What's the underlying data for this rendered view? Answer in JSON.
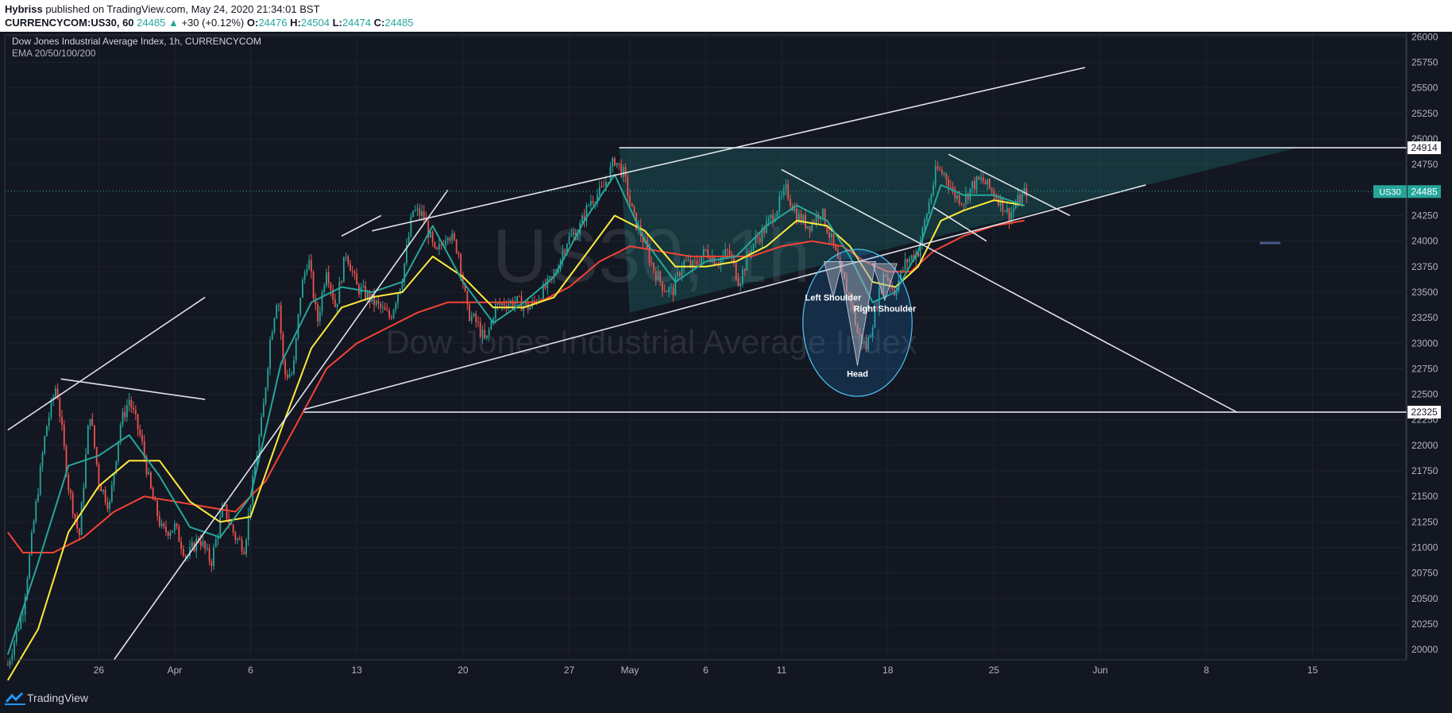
{
  "header": {
    "author": "Hybriss",
    "published_text": " published on TradingView.com, May 24, 2020 21:34:01 BST",
    "symbol": "CURRENCYCOM:US30, 60",
    "last": "24485",
    "change": "+30 (+0.12%)",
    "o_label": "O:",
    "o_value": "24476",
    "h_label": "H:",
    "h_value": "24504",
    "l_label": "L:",
    "l_value": "24474",
    "c_label": "C:",
    "c_value": "24485"
  },
  "legend": {
    "title": "Dow Jones Industrial Average Index, 1h, CURRENCYCOM",
    "indicator": "EMA 20/50/100/200"
  },
  "watermark": {
    "symbol": "US30, 1h",
    "name": "Dow Jones Industrial Average Index"
  },
  "annotations": {
    "left_shoulder": "Left Shoulder",
    "right_shoulder": "Right Shoulder",
    "head": "Head"
  },
  "price_labels": {
    "resistance": "24914",
    "support": "22325",
    "current_symbol": "US30",
    "current_price": "24485"
  },
  "footer": {
    "brand": "TradingView"
  },
  "colors": {
    "background": "#131722",
    "up": "#26a69a",
    "down": "#ef5350",
    "ema20": "#26a69a",
    "ema50": "#ffeb3b",
    "ema100": "#f44336",
    "lines": "#e0e3eb"
  },
  "chart_data": {
    "type": "candlestick",
    "y_ticks": [
      20000,
      20250,
      20500,
      20750,
      21000,
      21250,
      21500,
      21750,
      22000,
      22250,
      22500,
      22750,
      23000,
      23250,
      23500,
      23750,
      24000,
      24250,
      24500,
      24750,
      25000,
      25250,
      25500,
      25750,
      26000
    ],
    "ylim": [
      19900,
      26050
    ],
    "x_ticks": [
      "26",
      "Apr",
      "6",
      "13",
      "20",
      "27",
      "May",
      "6",
      "11",
      "18",
      "25",
      "Jun",
      "8",
      "15"
    ],
    "x_tick_days": [
      -5,
      0,
      5,
      12,
      19,
      26,
      30,
      35,
      40,
      47,
      54,
      61,
      68,
      75
    ],
    "xlim": [
      -11.2,
      81.2
    ],
    "close_path": [
      [
        -11,
        19850
      ],
      [
        -10,
        20400
      ],
      [
        -9.2,
        21350
      ],
      [
        -8.5,
        22150
      ],
      [
        -7.8,
        22600
      ],
      [
        -7,
        21600
      ],
      [
        -6.3,
        21100
      ],
      [
        -5.6,
        22350
      ],
      [
        -5,
        21650
      ],
      [
        -4.3,
        21400
      ],
      [
        -3.6,
        22200
      ],
      [
        -3,
        22450
      ],
      [
        -2.2,
        22050
      ],
      [
        -1.5,
        21500
      ],
      [
        -0.8,
        21150
      ],
      [
        0,
        21200
      ],
      [
        0.8,
        20900
      ],
      [
        1.6,
        21100
      ],
      [
        2.4,
        20850
      ],
      [
        3.2,
        21400
      ],
      [
        4,
        21100
      ],
      [
        4.6,
        21000
      ],
      [
        5.2,
        21700
      ],
      [
        5.8,
        22300
      ],
      [
        6.3,
        23050
      ],
      [
        6.8,
        23500
      ],
      [
        7.2,
        22700
      ],
      [
        7.8,
        22700
      ],
      [
        8.3,
        23500
      ],
      [
        8.8,
        23850
      ],
      [
        9.4,
        23200
      ],
      [
        10,
        23750
      ],
      [
        10.6,
        23350
      ],
      [
        11.3,
        23900
      ],
      [
        12,
        23550
      ],
      [
        12.8,
        23450
      ],
      [
        13.5,
        23350
      ],
      [
        14.2,
        23250
      ],
      [
        15,
        23650
      ],
      [
        15.7,
        24300
      ],
      [
        16.4,
        24250
      ],
      [
        17.2,
        23850
      ],
      [
        18,
        24100
      ],
      [
        18.7,
        23900
      ],
      [
        19.3,
        23300
      ],
      [
        19.9,
        23200
      ],
      [
        20.5,
        23000
      ],
      [
        21.1,
        23350
      ],
      [
        21.8,
        23400
      ],
      [
        22.6,
        23400
      ],
      [
        23.4,
        23350
      ],
      [
        24.2,
        23500
      ],
      [
        25,
        23650
      ],
      [
        25.8,
        24000
      ],
      [
        26.6,
        24100
      ],
      [
        27.4,
        24400
      ],
      [
        28.2,
        24500
      ],
      [
        29,
        24800
      ],
      [
        29.6,
        24650
      ],
      [
        30.2,
        24250
      ],
      [
        30.9,
        24000
      ],
      [
        31.5,
        23750
      ],
      [
        32.2,
        23550
      ],
      [
        32.8,
        23500
      ],
      [
        33.5,
        23800
      ],
      [
        34.2,
        23750
      ],
      [
        35,
        23900
      ],
      [
        35.8,
        23800
      ],
      [
        36.5,
        23900
      ],
      [
        37.2,
        23600
      ],
      [
        38,
        23950
      ],
      [
        38.8,
        24100
      ],
      [
        39.6,
        24300
      ],
      [
        40.3,
        24500
      ],
      [
        41,
        24250
      ],
      [
        41.8,
        24150
      ],
      [
        42.6,
        24300
      ],
      [
        43.3,
        24000
      ],
      [
        44,
        23650
      ],
      [
        44.6,
        23400
      ],
      [
        45,
        23100
      ],
      [
        45.6,
        22950
      ],
      [
        46.2,
        23350
      ],
      [
        46.8,
        23700
      ],
      [
        47.4,
        23500
      ],
      [
        48.2,
        23800
      ],
      [
        49,
        23900
      ],
      [
        49.6,
        24300
      ],
      [
        50.2,
        24700
      ],
      [
        50.8,
        24650
      ],
      [
        51.4,
        24450
      ],
      [
        52,
        24400
      ],
      [
        52.6,
        24550
      ],
      [
        53.2,
        24600
      ],
      [
        53.8,
        24500
      ],
      [
        54.4,
        24400
      ],
      [
        55,
        24250
      ],
      [
        55.6,
        24400
      ],
      [
        56.2,
        24500
      ]
    ],
    "ema20_path": [
      [
        -11,
        19950
      ],
      [
        -9,
        20850
      ],
      [
        -7,
        21800
      ],
      [
        -5,
        21900
      ],
      [
        -3,
        22100
      ],
      [
        -1,
        21700
      ],
      [
        1,
        21200
      ],
      [
        3,
        21100
      ],
      [
        5,
        21500
      ],
      [
        7,
        22800
      ],
      [
        9,
        23400
      ],
      [
        11,
        23550
      ],
      [
        13,
        23500
      ],
      [
        15,
        23600
      ],
      [
        17,
        24150
      ],
      [
        19,
        23600
      ],
      [
        21,
        23200
      ],
      [
        23,
        23400
      ],
      [
        25,
        23650
      ],
      [
        27,
        24200
      ],
      [
        29,
        24650
      ],
      [
        31,
        24000
      ],
      [
        33,
        23600
      ],
      [
        35,
        23800
      ],
      [
        37,
        23850
      ],
      [
        39,
        24150
      ],
      [
        41,
        24350
      ],
      [
        43,
        24200
      ],
      [
        44.5,
        23850
      ],
      [
        46,
        23400
      ],
      [
        47.5,
        23500
      ],
      [
        49,
        23900
      ],
      [
        50.5,
        24550
      ],
      [
        52,
        24450
      ],
      [
        54,
        24450
      ],
      [
        56,
        24350
      ]
    ],
    "ema50_path": [
      [
        -11,
        19700
      ],
      [
        -9,
        20200
      ],
      [
        -7,
        21150
      ],
      [
        -5,
        21600
      ],
      [
        -3,
        21850
      ],
      [
        -1,
        21850
      ],
      [
        1,
        21450
      ],
      [
        3,
        21250
      ],
      [
        5,
        21300
      ],
      [
        7,
        22150
      ],
      [
        9,
        22950
      ],
      [
        11,
        23350
      ],
      [
        13,
        23450
      ],
      [
        15,
        23500
      ],
      [
        17,
        23850
      ],
      [
        19,
        23650
      ],
      [
        21,
        23350
      ],
      [
        23,
        23350
      ],
      [
        25,
        23450
      ],
      [
        27,
        23850
      ],
      [
        29,
        24250
      ],
      [
        31,
        24100
      ],
      [
        33,
        23750
      ],
      [
        35,
        23750
      ],
      [
        37,
        23800
      ],
      [
        39,
        23950
      ],
      [
        41,
        24200
      ],
      [
        43,
        24150
      ],
      [
        44.5,
        23950
      ],
      [
        46,
        23600
      ],
      [
        47.5,
        23550
      ],
      [
        49,
        23750
      ],
      [
        50.5,
        24200
      ],
      [
        52,
        24300
      ],
      [
        54,
        24400
      ],
      [
        56,
        24350
      ]
    ],
    "ema100_path": [
      [
        -11,
        21150
      ],
      [
        -10,
        20950
      ],
      [
        -8,
        20950
      ],
      [
        -6,
        21100
      ],
      [
        -4,
        21350
      ],
      [
        -2,
        21500
      ],
      [
        0,
        21450
      ],
      [
        2,
        21400
      ],
      [
        4,
        21350
      ],
      [
        6,
        21650
      ],
      [
        8,
        22200
      ],
      [
        10,
        22750
      ],
      [
        12,
        23000
      ],
      [
        14,
        23150
      ],
      [
        16,
        23300
      ],
      [
        18,
        23400
      ],
      [
        20,
        23400
      ],
      [
        22,
        23400
      ],
      [
        24,
        23400
      ],
      [
        26,
        23550
      ],
      [
        28,
        23800
      ],
      [
        30,
        23950
      ],
      [
        32,
        23900
      ],
      [
        34,
        23850
      ],
      [
        36,
        23850
      ],
      [
        38,
        23850
      ],
      [
        40,
        23950
      ],
      [
        42,
        24000
      ],
      [
        44,
        23950
      ],
      [
        45.5,
        23800
      ],
      [
        47,
        23700
      ],
      [
        48.5,
        23700
      ],
      [
        50,
        23900
      ],
      [
        52,
        24050
      ],
      [
        54,
        24150
      ],
      [
        56,
        24200
      ]
    ],
    "lines": [
      {
        "p1": [
          -11,
          22150
        ],
        "p2": [
          2,
          23450
        ]
      },
      {
        "p1": [
          -7.5,
          22650
        ],
        "p2": [
          2,
          22450
        ]
      },
      {
        "p1": [
          13,
          24100
        ],
        "p2": [
          60,
          25700
        ]
      },
      {
        "p1": [
          11,
          24050
        ],
        "p2": [
          13.6,
          24250
        ]
      },
      {
        "p1": [
          -4,
          19900
        ],
        "p2": [
          18,
          24500
        ]
      },
      {
        "p1": [
          8.5,
          22350
        ],
        "p2": [
          64,
          24550
        ]
      },
      {
        "p1": [
          8.5,
          22325
        ],
        "p2": [
          81.2,
          22325
        ]
      },
      {
        "p1": [
          29.3,
          24914
        ],
        "p2": [
          81.2,
          24914
        ]
      },
      {
        "p1": [
          40,
          24700
        ],
        "p2": [
          70,
          22325
        ]
      },
      {
        "p1": [
          51,
          24850
        ],
        "p2": [
          59,
          24250
        ]
      },
      {
        "p1": [
          50,
          24330
        ],
        "p2": [
          53.5,
          24000
        ]
      }
    ],
    "triangle_zone": [
      [
        29.3,
        24914
      ],
      [
        74,
        24914
      ],
      [
        30,
        23300
      ]
    ],
    "hs_circle": {
      "center": [
        45,
        23200
      ],
      "rx_days": 3.6,
      "ry_price": 720
    },
    "hs_triangles": [
      [
        [
          42.8,
          23800
        ],
        [
          44,
          23800
        ],
        [
          43.4,
          23450
        ]
      ],
      [
        [
          43.8,
          23800
        ],
        [
          46.2,
          23800
        ],
        [
          45,
          22780
        ]
      ],
      [
        [
          46,
          23780
        ],
        [
          47.6,
          23780
        ],
        [
          46.8,
          23420
        ]
      ]
    ],
    "resistance": 24914,
    "support": 22325,
    "current": 24485
  }
}
